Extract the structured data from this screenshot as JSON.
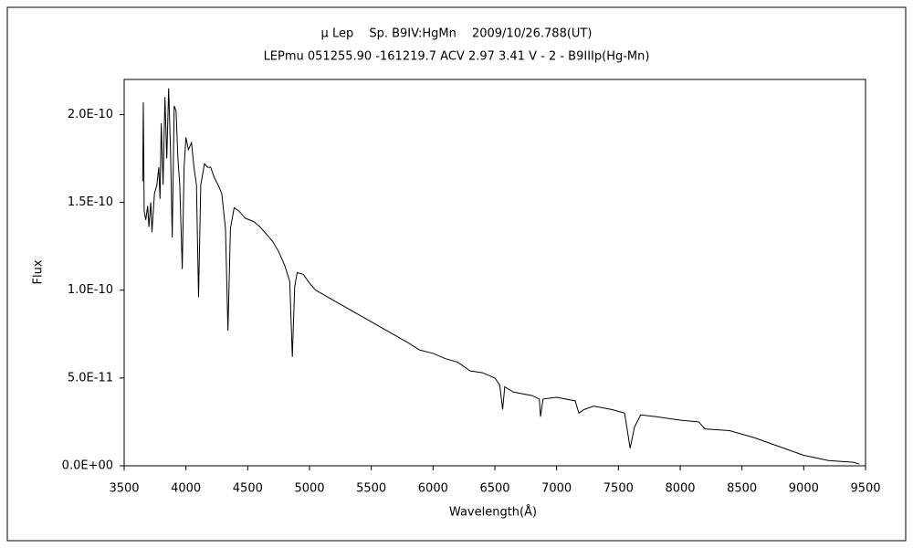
{
  "chart_data": {
    "type": "line",
    "title": "μ Lep　 Sp. B9IV:HgMn　 2009/10/26.788(UT)",
    "subtitle": "LEPmu 051255.90 -161219.7 ACV 2.97 3.41 V - 2 - B9IIIp(Hg-Mn)",
    "x_label": "Wavelength(Å)",
    "y_label": "Flux",
    "xlim": [
      3500,
      9500
    ],
    "xticks": [
      3500,
      4000,
      4500,
      5000,
      5500,
      6000,
      6500,
      7000,
      7500,
      8000,
      8500,
      9000,
      9500
    ],
    "ylim": [
      0,
      2.2e-10
    ],
    "yticks": [
      {
        "value": 0,
        "label": "0.0E+00"
      },
      {
        "value": 5e-11,
        "label": "5.0E-11"
      },
      {
        "value": 1e-10,
        "label": "1.0E-10"
      },
      {
        "value": 1.5e-10,
        "label": "1.5E-10"
      },
      {
        "value": 2e-10,
        "label": "2.0E-10"
      }
    ],
    "grid": false,
    "color": "#000000",
    "x": [
      3650,
      3655,
      3662,
      3675,
      3690,
      3700,
      3715,
      3725,
      3745,
      3765,
      3780,
      3790,
      3800,
      3815,
      3830,
      3845,
      3860,
      3875,
      3889,
      3905,
      3920,
      3935,
      3950,
      3970,
      3985,
      4000,
      4020,
      4045,
      4065,
      4085,
      4102,
      4120,
      4150,
      4175,
      4200,
      4230,
      4260,
      4290,
      4320,
      4340,
      4360,
      4390,
      4430,
      4480,
      4550,
      4600,
      4650,
      4700,
      4750,
      4800,
      4840,
      4861,
      4880,
      4900,
      4950,
      5000,
      5050,
      5100,
      5200,
      5300,
      5400,
      5500,
      5600,
      5700,
      5800,
      5890,
      6000,
      6100,
      6200,
      6280,
      6300,
      6400,
      6500,
      6540,
      6563,
      6580,
      6650,
      6800,
      6860,
      6870,
      6890,
      7000,
      7150,
      7180,
      7220,
      7300,
      7450,
      7550,
      7595,
      7630,
      7680,
      7800,
      8000,
      8150,
      8200,
      8400,
      8600,
      8800,
      9000,
      9200,
      9400,
      9450
    ],
    "values": [
      1.62e-10,
      2.07e-10,
      1.45e-10,
      1.4e-10,
      1.48e-10,
      1.36e-10,
      1.5e-10,
      1.33e-10,
      1.55e-10,
      1.6e-10,
      1.7e-10,
      1.52e-10,
      1.95e-10,
      1.6e-10,
      2.1e-10,
      1.75e-10,
      2.15e-10,
      1.8e-10,
      1.3e-10,
      2.05e-10,
      2.02e-10,
      1.75e-10,
      1.6e-10,
      1.12e-10,
      1.7e-10,
      1.87e-10,
      1.8e-10,
      1.84e-10,
      1.7e-10,
      1.6e-10,
      9.6e-11,
      1.6e-10,
      1.72e-10,
      1.7e-10,
      1.7e-10,
      1.64e-10,
      1.6e-10,
      1.55e-10,
      1.35e-10,
      7.7e-11,
      1.35e-10,
      1.47e-10,
      1.45e-10,
      1.41e-10,
      1.39e-10,
      1.36e-10,
      1.32e-10,
      1.28e-10,
      1.22e-10,
      1.14e-10,
      1.05e-10,
      6.2e-11,
      1.02e-10,
      1.1e-10,
      1.09e-10,
      1.04e-10,
      1e-10,
      9.8e-11,
      9.4e-11,
      9e-11,
      8.6e-11,
      8.2e-11,
      7.8e-11,
      7.4e-11,
      7e-11,
      6.6e-11,
      6.4e-11,
      6.1e-11,
      5.9e-11,
      5.5e-11,
      5.4e-11,
      5.3e-11,
      5e-11,
      4.6e-11,
      3.2e-11,
      4.5e-11,
      4.2e-11,
      4e-11,
      3.8e-11,
      2.8e-11,
      3.8e-11,
      3.9e-11,
      3.7e-11,
      3e-11,
      3.2e-11,
      3.4e-11,
      3.2e-11,
      3e-11,
      1e-11,
      2.2e-11,
      2.9e-11,
      2.8e-11,
      2.6e-11,
      2.5e-11,
      2.1e-11,
      2e-11,
      1.6e-11,
      1.1e-11,
      6e-12,
      3e-12,
      2e-12,
      1e-12
    ]
  }
}
